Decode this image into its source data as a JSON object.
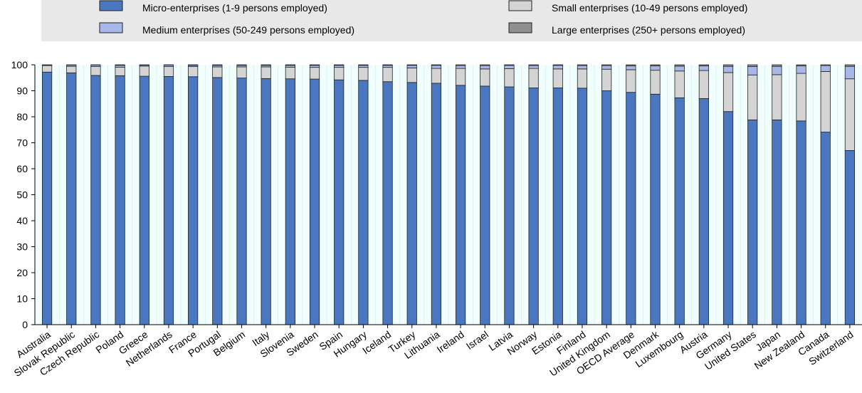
{
  "chart_data": {
    "type": "bar",
    "stacked": true,
    "title": "",
    "xlabel": "",
    "ylabel": "",
    "ylim": [
      0,
      100
    ],
    "yticks": [
      0,
      10,
      20,
      30,
      40,
      50,
      60,
      70,
      80,
      90,
      100
    ],
    "grid": false,
    "legend_position": "top",
    "categories": [
      "Australia",
      "Slovak Republic",
      "Czech Republic",
      "Poland",
      "Greece",
      "Netherlands",
      "France",
      "Portugal",
      "Belgium",
      "Italy",
      "Slovenia",
      "Sweden",
      "Spain",
      "Hungary",
      "Iceland",
      "Turkey",
      "Lithuania",
      "Ireland",
      "Israel",
      "Latvia",
      "Norway",
      "Estonia",
      "Finland",
      "United Kingdom",
      "OECD Average",
      "Denmark",
      "Luxembourg",
      "Austria",
      "Germany",
      "United States",
      "Japan",
      "New Zealand",
      "Canada",
      "Switzerland"
    ],
    "series": [
      {
        "name": "Micro-enterprises (1-9 persons employed)",
        "color": "#4a77c0",
        "values": [
          97.2,
          96.9,
          95.9,
          95.8,
          95.6,
          95.5,
          95.4,
          95.1,
          94.9,
          94.7,
          94.6,
          94.5,
          94.2,
          94.0,
          93.5,
          93.2,
          92.9,
          92.1,
          91.8,
          91.5,
          91.1,
          91.1,
          91.0,
          90.0,
          89.4,
          88.7,
          87.3,
          87.0,
          82.0,
          78.8,
          78.8,
          78.4,
          74.1,
          67.0
        ]
      },
      {
        "name": "Small enterprises (10-49 persons employed)",
        "color": "#d4d4d4",
        "values": [
          2.5,
          2.5,
          3.4,
          3.3,
          3.9,
          3.8,
          3.9,
          4.1,
          4.3,
          4.5,
          4.5,
          4.5,
          4.8,
          5.0,
          5.5,
          5.6,
          5.7,
          6.5,
          6.6,
          7.0,
          7.5,
          7.3,
          7.4,
          8.3,
          8.7,
          9.2,
          10.3,
          10.8,
          15.0,
          17.3,
          17.4,
          18.3,
          23.3,
          27.6
        ]
      },
      {
        "name": "Medium enterprises (50-249 persons employed)",
        "color": "#a7b8e8",
        "values": [
          0.2,
          0.5,
          0.6,
          0.7,
          0.4,
          0.6,
          0.5,
          0.6,
          0.6,
          0.6,
          0.7,
          0.8,
          0.8,
          0.8,
          0.8,
          1.0,
          1.2,
          1.1,
          1.3,
          1.3,
          1.1,
          1.4,
          1.3,
          1.4,
          1.5,
          1.7,
          1.9,
          1.8,
          2.4,
          3.2,
          3.2,
          2.9,
          2.3,
          4.8
        ]
      },
      {
        "name": "Large enterprises (250+ persons employed)",
        "color": "#8f8f8f",
        "values": [
          0.1,
          0.1,
          0.1,
          0.2,
          0.1,
          0.1,
          0.2,
          0.2,
          0.2,
          0.2,
          0.2,
          0.2,
          0.2,
          0.2,
          0.2,
          0.2,
          0.2,
          0.3,
          0.3,
          0.2,
          0.3,
          0.2,
          0.3,
          0.3,
          0.4,
          0.4,
          0.5,
          0.4,
          0.6,
          0.7,
          0.6,
          0.4,
          0.3,
          0.6
        ]
      }
    ],
    "legend_order": [
      0,
      1,
      2,
      3
    ]
  },
  "colors": {
    "band_background": "#f0fefe",
    "legend_background": "#e8e8e8",
    "bar_stroke": "#222222"
  }
}
